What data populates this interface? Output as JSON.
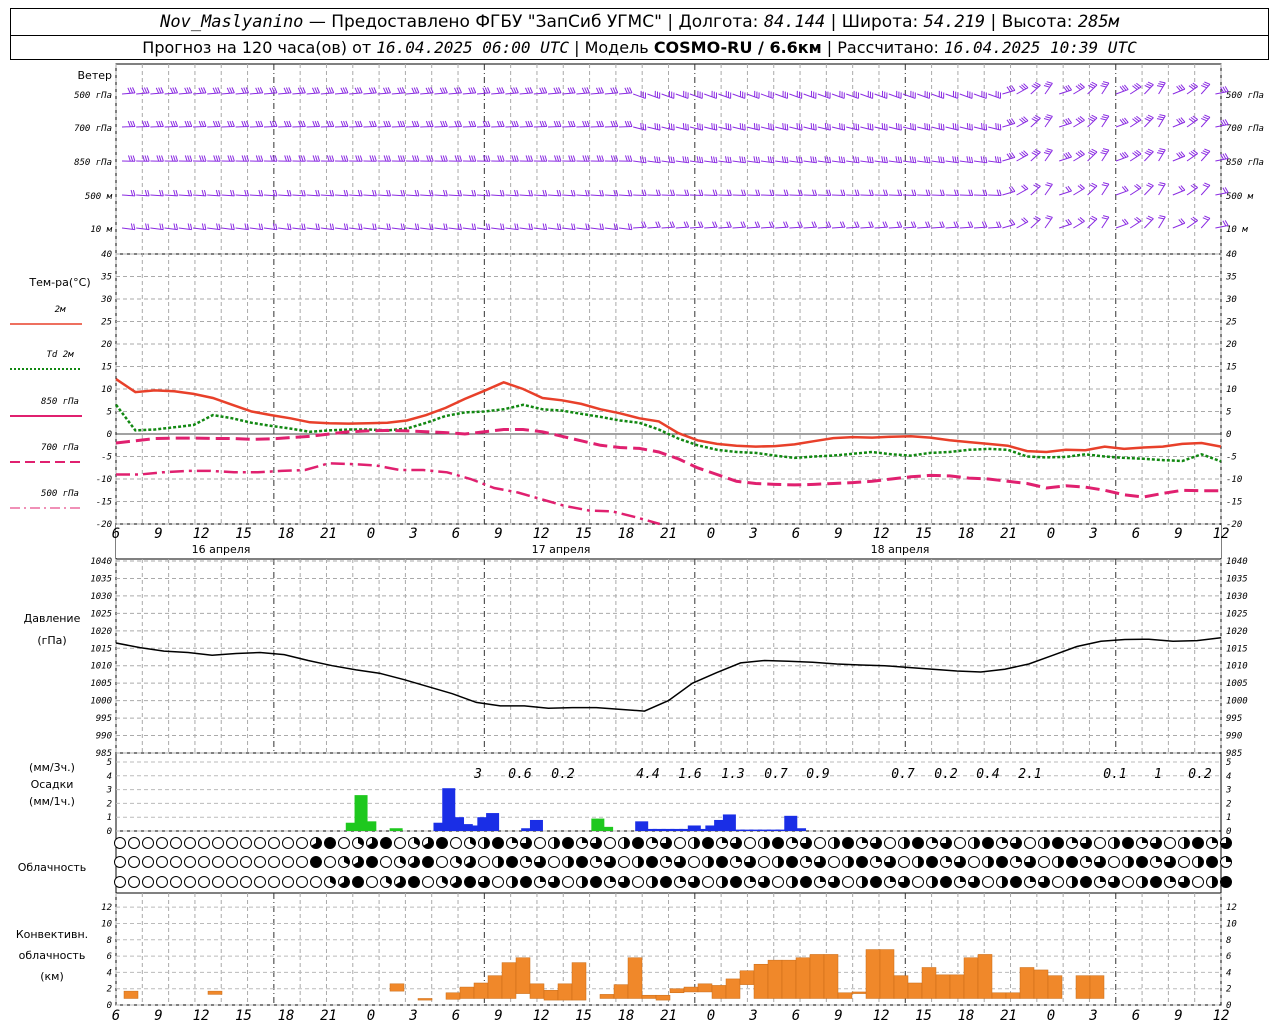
{
  "header": {
    "station": "Nov_Maslyanino",
    "provider": "— Предоставлено ФГБУ \"ЗапСиб УГМС\"",
    "lon_label": "Долгота:",
    "lon": "84.144",
    "lat_label": "Широта:",
    "lat": "54.219",
    "alt_label": "Высота:",
    "alt": "285м",
    "forecast_label": "Прогноз на 120 часа(ов) от",
    "forecast_time": "16.04.2025 06:00 UTC",
    "model_label": "Модель",
    "model": "COSMO-RU / 6.6км",
    "calc_label": "Рассчитано:",
    "calc_time": "16.04.2025 10:39 UTC"
  },
  "colors": {
    "t2m": "#e8402a",
    "td2m": "#118811",
    "t850": "#e0206f",
    "t700": "#e0206f",
    "t500": "#e0206f",
    "wind": "#8a2be2",
    "precip_green": "#1ec81e",
    "precip_blue": "#1a2ee6",
    "conv": "#f0882a"
  },
  "chart_data": [
    {
      "type": "wind_barbs",
      "panel_label": "Ветер",
      "levels": [
        "500 гПа",
        "700 гПа",
        "850 гПа",
        "500 м",
        "10 м"
      ]
    },
    {
      "type": "line",
      "panel_label": "Тем-ра(°С)",
      "ylim": [
        -20,
        40
      ],
      "yticks": [
        40,
        35,
        30,
        25,
        20,
        15,
        10,
        5,
        0,
        -5,
        -10,
        -15,
        -20
      ],
      "x_ticks": [
        "6",
        "9",
        "12",
        "15",
        "18",
        "21",
        "0",
        "3",
        "6",
        "9",
        "12",
        "15",
        "18",
        "21",
        "0",
        "3",
        "6",
        "9",
        "12",
        "15",
        "18",
        "21",
        "0",
        "3",
        "6",
        "9",
        "12"
      ],
      "day_labels": [
        "16 апреля",
        "17 апреля",
        "18 апреля"
      ],
      "series": [
        {
          "name": "2м",
          "style": "solid",
          "color": "#e8402a",
          "values": [
            12.2,
            9.3,
            9.7,
            9.5,
            8.9,
            8.0,
            6.5,
            5.0,
            4.2,
            3.5,
            2.6,
            2.4,
            2.3,
            2.4,
            2.5,
            3.0,
            4.2,
            5.8,
            7.8,
            9.6,
            11.5,
            10.0,
            8.0,
            7.5,
            6.7,
            5.5,
            4.6,
            3.5,
            2.8,
            0.2,
            -1.4,
            -2.2,
            -2.6,
            -2.8,
            -2.7,
            -2.3,
            -1.6,
            -0.9,
            -0.7,
            -0.8,
            -0.6,
            -0.5,
            -0.8,
            -1.4,
            -1.8,
            -2.2,
            -2.6,
            -3.8,
            -4.0,
            -3.5,
            -3.6,
            -2.8,
            -3.3,
            -3.0,
            -2.8,
            -2.2,
            -2.0,
            -2.8
          ]
        },
        {
          "name": "Td 2м",
          "style": "dotted",
          "color": "#118811",
          "values": [
            6.5,
            0.8,
            1.0,
            1.5,
            2.0,
            4.2,
            3.5,
            2.5,
            1.8,
            1.2,
            0.5,
            0.8,
            1.0,
            1.0,
            0.8,
            1.2,
            2.5,
            4.0,
            4.8,
            5.0,
            5.5,
            6.5,
            5.5,
            5.2,
            4.5,
            3.8,
            3.0,
            2.5,
            1.0,
            -1.0,
            -2.5,
            -3.5,
            -4.0,
            -4.2,
            -4.8,
            -5.3,
            -5.0,
            -4.8,
            -4.4,
            -4.0,
            -4.5,
            -4.8,
            -4.2,
            -4.0,
            -3.5,
            -3.3,
            -3.5,
            -5.0,
            -5.2,
            -5.1,
            -4.5,
            -5.0,
            -5.3,
            -5.5,
            -5.8,
            -6.0,
            -4.5,
            -6.1
          ]
        },
        {
          "name": "850 гПа",
          "style": "dash",
          "color": "#e0206f",
          "values": [
            -2.0,
            -1.5,
            -1.0,
            -0.9,
            -0.9,
            -1.0,
            -1.0,
            -1.2,
            -1.1,
            -0.8,
            -0.5,
            0.0,
            0.5,
            0.7,
            0.8,
            0.7,
            0.5,
            0.3,
            0.0,
            0.5,
            1.0,
            1.0,
            0.5,
            -0.5,
            -1.5,
            -2.5,
            -3.0,
            -3.2,
            -4.0,
            -5.5,
            -7.5,
            -9.0,
            -10.5,
            -11.0,
            -11.2,
            -11.3,
            -11.2,
            -11.0,
            -10.8,
            -10.5,
            -10.0,
            -9.5,
            -9.2,
            -9.3,
            -9.8,
            -10.0,
            -10.5,
            -11.0,
            -12.0,
            -11.5,
            -11.8,
            -12.5,
            -13.5,
            -14.0,
            -13.2,
            -12.5,
            -12.6,
            -12.6
          ]
        },
        {
          "name": "700 гПа",
          "style": "dashdot",
          "color": "#e0206f",
          "values": [
            -9.0,
            -9.0,
            -8.5,
            -8.2,
            -8.2,
            -8.5,
            -8.5,
            -8.2,
            -8.0,
            -6.5,
            -6.7,
            -7.0,
            -8.0,
            -8.0,
            -8.5,
            -10.0,
            -12.0,
            -13.0,
            -14.5,
            -16.0,
            -17.0,
            -17.2,
            -18.5,
            -20.0
          ]
        }
      ]
    },
    {
      "type": "line",
      "panel_label_1": "Давление",
      "panel_label_2": "(гПа)",
      "ylim": [
        985,
        1040
      ],
      "yticks": [
        1040,
        1035,
        1030,
        1025,
        1020,
        1015,
        1010,
        1005,
        1000,
        995,
        990,
        985
      ],
      "series": [
        {
          "name": "Давление",
          "values": [
            1016.5,
            1015.2,
            1014.2,
            1013.8,
            1013.0,
            1013.5,
            1013.8,
            1013.2,
            1011.5,
            1010.0,
            1008.8,
            1007.8,
            1006.0,
            1004.0,
            1002.0,
            999.5,
            998.5,
            998.5,
            997.8,
            998.0,
            998.0,
            997.5,
            997.0,
            1000.0,
            1005.0,
            1008.0,
            1010.8,
            1011.5,
            1011.3,
            1011.0,
            1010.5,
            1010.2,
            1010.0,
            1009.5,
            1009.0,
            1008.5,
            1008.2,
            1009.0,
            1010.5,
            1013.0,
            1015.5,
            1017.0,
            1017.5,
            1017.6,
            1017.0,
            1017.2,
            1018.0
          ]
        }
      ]
    },
    {
      "type": "bar",
      "panel_label_1": "(мм/3ч.)",
      "panel_label_2": "Осадки",
      "panel_label_3": "(мм/1ч.)",
      "ylim": [
        0,
        5
      ],
      "yticks": [
        5,
        4,
        3,
        2,
        1,
        0
      ],
      "totals_3h": [
        "3",
        "0.6",
        "0.2",
        "4.4",
        "1.6",
        "1.3",
        "0.7",
        "0.9",
        "0.7",
        "0.2",
        "0.4",
        "2.1",
        "0.1",
        "1",
        "0.2"
      ],
      "hours": [
        27,
        28,
        29,
        32,
        37,
        38,
        39,
        40,
        41,
        42,
        43,
        47,
        48,
        55,
        56,
        57,
        58,
        59,
        60,
        61,
        62,
        63,
        64,
        65,
        66,
        67,
        68,
        69,
        70,
        71,
        72,
        73,
        74,
        75,
        76,
        77,
        78,
        79,
        80,
        81,
        82,
        83,
        84,
        85,
        86,
        87,
        88,
        89,
        90,
        91,
        92,
        93,
        94,
        95,
        96,
        97,
        98,
        99,
        100,
        101,
        102,
        103,
        104,
        105,
        106,
        107,
        108,
        109,
        110,
        111,
        112,
        113,
        114,
        115,
        116,
        117,
        118,
        119,
        120
      ],
      "values_1h": [
        0.6,
        2.6,
        0.7,
        0.2,
        0.6,
        3.1,
        1.0,
        0.5,
        0.4,
        1.0,
        1.3,
        0.2,
        0.8,
        0.9,
        0.3,
        0.0,
        0.0,
        0.0,
        0.7,
        0.15,
        0.15,
        0.15,
        0.15,
        0.15,
        0.4,
        0.15,
        0.4,
        0.8,
        1.2,
        0.1,
        0.1,
        0.1,
        0.1,
        0.1,
        0.1,
        1.1,
        0.2,
        0.0,
        0.0,
        0.0,
        0.0,
        0.0,
        0.0,
        0.0,
        0.0,
        0.0,
        0.0,
        0.0,
        0.0,
        0.0,
        0.0,
        0.0,
        0.0,
        0.0,
        0.0,
        0.0,
        0.0,
        0.0,
        0.0,
        0.0,
        0.0,
        0.0,
        0.0,
        0.0,
        0.0,
        0.0,
        0.0,
        0.0,
        0.0,
        0.0,
        0.0,
        0.0,
        0.0,
        0.0,
        0.0,
        0.0,
        0.0,
        0.0,
        0.0
      ],
      "bar_colors": [
        "#1ec81e",
        "#1ec81e",
        "#1ec81e",
        "#1ec81e",
        "#1a2ee6",
        "#1a2ee6",
        "#1a2ee6",
        "#1a2ee6",
        "#1a2ee6",
        "#1a2ee6",
        "#1a2ee6",
        "#1a2ee6",
        "#1a2ee6",
        "#1ec81e",
        "#1ec81e",
        "#1a2ee6",
        "#1a2ee6",
        "#1a2ee6",
        "#1a2ee6",
        "#1a2ee6",
        "#1a2ee6",
        "#1a2ee6",
        "#1a2ee6",
        "#1a2ee6",
        "#1a2ee6",
        "#1a2ee6",
        "#1a2ee6",
        "#1a2ee6",
        "#1a2ee6",
        "#1a2ee6",
        "#1a2ee6",
        "#1a2ee6",
        "#1a2ee6",
        "#1a2ee6",
        "#1a2ee6",
        "#1a2ee6",
        "#1a2ee6"
      ]
    },
    {
      "type": "symbols",
      "panel_label": "Облачность",
      "rows": 3,
      "count": 80
    },
    {
      "type": "bar",
      "panel_label_1": "Конвективн.",
      "panel_label_2": "облачность",
      "panel_label_3": "(км)",
      "ylim": [
        0,
        13
      ],
      "yticks": [
        12,
        10,
        8,
        6,
        4,
        2,
        0
      ],
      "bars": [
        {
          "h0": 0,
          "top": 1.7,
          "bot": 0.8
        },
        {
          "h0": 6,
          "top": 1.7,
          "bot": 1.3
        },
        {
          "h0": 19,
          "top": 2.6,
          "bot": 1.7
        },
        {
          "h0": 21,
          "top": 0.8,
          "bot": 0.6
        },
        {
          "h0": 23,
          "top": 1.5,
          "bot": 0.7
        },
        {
          "h0": 24,
          "top": 2.2,
          "bot": 0.8
        },
        {
          "h0": 25,
          "top": 2.7,
          "bot": 0.8
        },
        {
          "h0": 26,
          "top": 3.6,
          "bot": 0.8
        },
        {
          "h0": 27,
          "top": 5.2,
          "bot": 0.8
        },
        {
          "h0": 28,
          "top": 5.8,
          "bot": 1.4
        },
        {
          "h0": 29,
          "top": 2.6,
          "bot": 0.8
        },
        {
          "h0": 30,
          "top": 1.8,
          "bot": 0.6
        },
        {
          "h0": 31,
          "top": 2.6,
          "bot": 0.6
        },
        {
          "h0": 32,
          "top": 5.2,
          "bot": 0.6
        },
        {
          "h0": 34,
          "top": 1.3,
          "bot": 0.8
        },
        {
          "h0": 35,
          "top": 2.5,
          "bot": 0.8
        },
        {
          "h0": 36,
          "top": 5.8,
          "bot": 0.8
        },
        {
          "h0": 37,
          "top": 1.2,
          "bot": 0.8
        },
        {
          "h0": 38,
          "top": 1.2,
          "bot": 0.6
        },
        {
          "h0": 39,
          "top": 2.0,
          "bot": 1.5
        },
        {
          "h0": 40,
          "top": 2.2,
          "bot": 1.6
        },
        {
          "h0": 41,
          "top": 2.6,
          "bot": 1.6
        },
        {
          "h0": 42,
          "top": 2.4,
          "bot": 0.8
        },
        {
          "h0": 43,
          "top": 3.2,
          "bot": 0.8
        },
        {
          "h0": 44,
          "top": 4.2,
          "bot": 2.5
        },
        {
          "h0": 45,
          "top": 5.0,
          "bot": 0.8
        },
        {
          "h0": 46,
          "top": 5.5,
          "bot": 0.8
        },
        {
          "h0": 47,
          "top": 5.5,
          "bot": 0.8
        },
        {
          "h0": 48,
          "top": 5.8,
          "bot": 0.8
        },
        {
          "h0": 49,
          "top": 6.2,
          "bot": 0.8
        },
        {
          "h0": 50,
          "top": 6.2,
          "bot": 0.8
        },
        {
          "h0": 51,
          "top": 1.5,
          "bot": 0.8
        },
        {
          "h0": 52,
          "top": 1.6,
          "bot": 1.4
        },
        {
          "h0": 53,
          "top": 6.8,
          "bot": 0.8
        },
        {
          "h0": 54,
          "top": 6.8,
          "bot": 0.8
        },
        {
          "h0": 55,
          "top": 3.6,
          "bot": 0.8
        },
        {
          "h0": 56,
          "top": 2.7,
          "bot": 0.8
        },
        {
          "h0": 57,
          "top": 4.6,
          "bot": 0.8
        },
        {
          "h0": 58,
          "top": 3.7,
          "bot": 0.8
        },
        {
          "h0": 59,
          "top": 3.7,
          "bot": 0.8
        },
        {
          "h0": 60,
          "top": 5.8,
          "bot": 0.8
        },
        {
          "h0": 61,
          "top": 6.2,
          "bot": 0.8
        },
        {
          "h0": 62,
          "top": 1.5,
          "bot": 0.8
        },
        {
          "h0": 63,
          "top": 1.5,
          "bot": 0.8
        },
        {
          "h0": 64,
          "top": 4.6,
          "bot": 0.8
        },
        {
          "h0": 65,
          "top": 4.3,
          "bot": 0.8
        },
        {
          "h0": 66,
          "top": 3.6,
          "bot": 0.8
        },
        {
          "h0": 68,
          "top": 3.6,
          "bot": 0.8
        },
        {
          "h0": 69,
          "top": 3.6,
          "bot": 0.8
        }
      ]
    }
  ]
}
